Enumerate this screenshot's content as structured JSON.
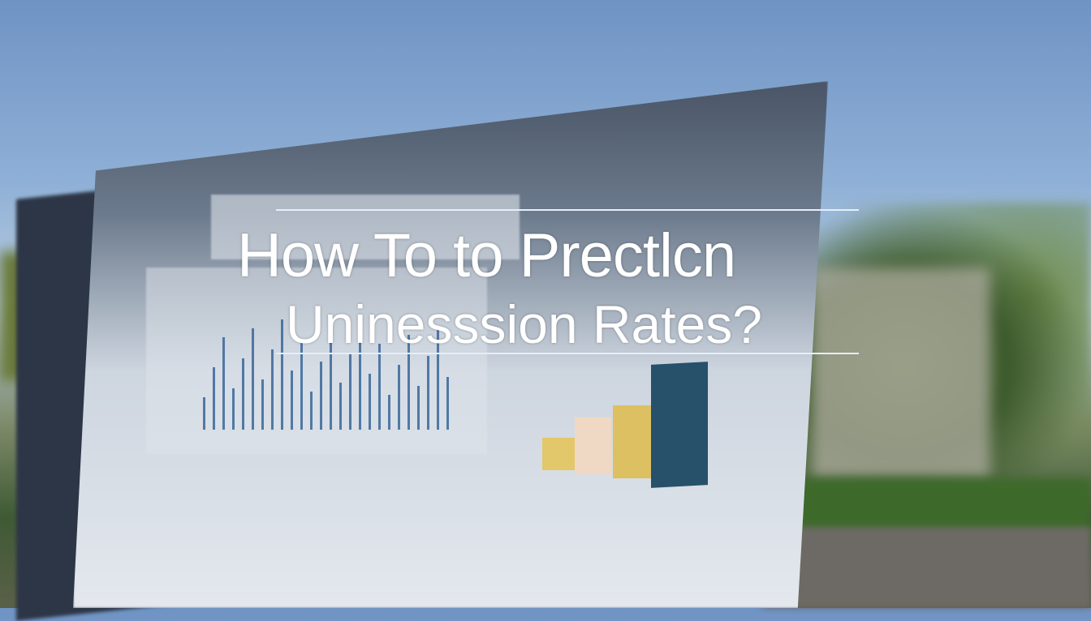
{
  "headline": {
    "line1": "How To to Prectlcn",
    "line2": "Uninesssion Rates?"
  },
  "colors": {
    "sky": "#7fa3cf",
    "screen": "#4a5566",
    "bar_dark": "#27506a",
    "bar_yellow": "#e2c86a",
    "bar_peach": "#efd9c4"
  }
}
